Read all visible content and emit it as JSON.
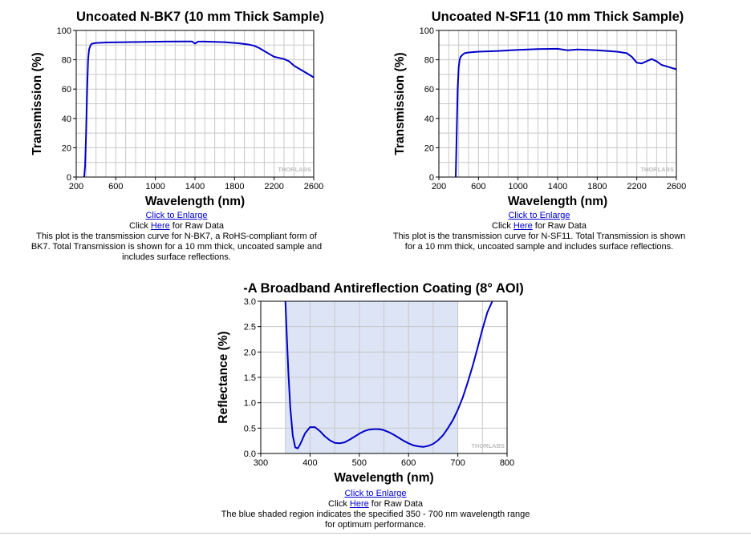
{
  "colors": {
    "curve": "#0000c8",
    "grid": "#c8c8c8",
    "shade": "#dce4f5",
    "watermark": "#bdbdbd"
  },
  "watermark": "THORLABS",
  "chart_data": [
    {
      "type": "line",
      "title": "Uncoated N-BK7 (10 mm Thick Sample)",
      "xlabel": "Wavelength (nm)",
      "ylabel": "Transmission (%)",
      "xlim": [
        200,
        2600
      ],
      "ylim": [
        0,
        100
      ],
      "xticks": [
        200,
        600,
        1000,
        1400,
        1800,
        2200,
        2600
      ],
      "yticks": [
        0,
        20,
        40,
        60,
        80,
        100
      ],
      "yprecision": 0,
      "grid": true,
      "series": [
        {
          "x": [
            280,
            290,
            300,
            310,
            320,
            330,
            345,
            360,
            400,
            500,
            700,
            900,
            1100,
            1300,
            1370,
            1400,
            1430,
            1500,
            1700,
            1850,
            1950,
            2000,
            2050,
            2100,
            2150,
            2200,
            2300,
            2350,
            2400,
            2450,
            2500,
            2550,
            2600
          ],
          "y": [
            0,
            8,
            30,
            60,
            80,
            87,
            90,
            91,
            91.5,
            91.8,
            92,
            92.2,
            92.4,
            92.5,
            92.5,
            91,
            92.4,
            92.4,
            92,
            91.2,
            90.3,
            89.5,
            88,
            86,
            84,
            82,
            80.5,
            79,
            76,
            74,
            72,
            70,
            68
          ]
        }
      ]
    },
    {
      "type": "line",
      "title": "Uncoated N-SF11 (10 mm Thick Sample)",
      "xlabel": "Wavelength (nm)",
      "ylabel": "Transmission (%)",
      "xlim": [
        200,
        2600
      ],
      "ylim": [
        0,
        100
      ],
      "xticks": [
        200,
        600,
        1000,
        1400,
        1800,
        2200,
        2600
      ],
      "yticks": [
        0,
        20,
        40,
        60,
        80,
        100
      ],
      "yprecision": 0,
      "grid": true,
      "series": [
        {
          "x": [
            370,
            380,
            390,
            400,
            410,
            420,
            440,
            460,
            500,
            600,
            800,
            1000,
            1200,
            1400,
            1500,
            1600,
            1800,
            2000,
            2100,
            2150,
            2200,
            2250,
            2300,
            2350,
            2400,
            2450,
            2500,
            2550,
            2600
          ],
          "y": [
            0,
            30,
            60,
            75,
            80,
            82,
            83.5,
            84.5,
            85,
            85.5,
            86,
            86.8,
            87.3,
            87.5,
            86.5,
            87,
            86.5,
            85.5,
            84.5,
            82,
            78,
            77.5,
            79,
            80.5,
            79,
            76.5,
            75.5,
            74.5,
            73.5
          ]
        }
      ]
    },
    {
      "type": "line",
      "title": "-A Broadband Antireflection Coating (8° AOI)",
      "xlabel": "Wavelength (nm)",
      "ylabel": "Reflectance (%)",
      "xlim": [
        300,
        800
      ],
      "ylim": [
        0,
        3.0
      ],
      "xticks": [
        300,
        400,
        500,
        600,
        700,
        800
      ],
      "yticks": [
        0,
        0.5,
        1.0,
        1.5,
        2.0,
        2.5,
        3.0
      ],
      "yprecision": 1,
      "grid": true,
      "shaded_region": [
        350,
        700
      ],
      "series": [
        {
          "x": [
            350,
            353,
            356,
            360,
            365,
            370,
            375,
            380,
            390,
            400,
            410,
            420,
            430,
            440,
            450,
            460,
            470,
            480,
            490,
            500,
            510,
            520,
            530,
            540,
            550,
            560,
            570,
            580,
            590,
            600,
            610,
            620,
            630,
            640,
            650,
            660,
            670,
            680,
            690,
            700,
            710,
            720,
            730,
            740,
            750,
            760,
            770
          ],
          "y": [
            3.0,
            2.3,
            1.6,
            0.9,
            0.35,
            0.12,
            0.1,
            0.18,
            0.4,
            0.52,
            0.52,
            0.44,
            0.34,
            0.26,
            0.21,
            0.2,
            0.22,
            0.27,
            0.33,
            0.39,
            0.44,
            0.47,
            0.48,
            0.48,
            0.46,
            0.42,
            0.37,
            0.31,
            0.25,
            0.2,
            0.16,
            0.14,
            0.13,
            0.15,
            0.19,
            0.26,
            0.36,
            0.5,
            0.66,
            0.86,
            1.1,
            1.4,
            1.72,
            2.08,
            2.45,
            2.78,
            3.0
          ]
        }
      ]
    }
  ],
  "captions": [
    {
      "enlarge": "Click to Enlarge",
      "raw_prefix": "Click ",
      "raw_link": "Here",
      "raw_suffix": " for Raw Data",
      "desc1": "This plot is the transmission curve for N-BK7, a RoHS-compliant form of",
      "desc2": "BK7. Total Transmission is shown for a 10 mm thick, uncoated sample and",
      "desc3": "includes surface reflections."
    },
    {
      "enlarge": "Click to Enlarge",
      "raw_prefix": "Click ",
      "raw_link": "Here",
      "raw_suffix": " for Raw Data",
      "desc1": "This plot is the transmission curve for N-SF11. Total Transmission is shown",
      "desc2": "for a 10 mm thick, uncoated sample and includes surface reflections.",
      "desc3": ""
    },
    {
      "enlarge": "Click to Enlarge",
      "raw_prefix": "Click ",
      "raw_link": "Here",
      "raw_suffix": " for Raw Data",
      "desc1": "The blue shaded region indicates the specified 350 - 700 nm wavelength range",
      "desc2": "for optimum performance.",
      "desc3": ""
    }
  ]
}
